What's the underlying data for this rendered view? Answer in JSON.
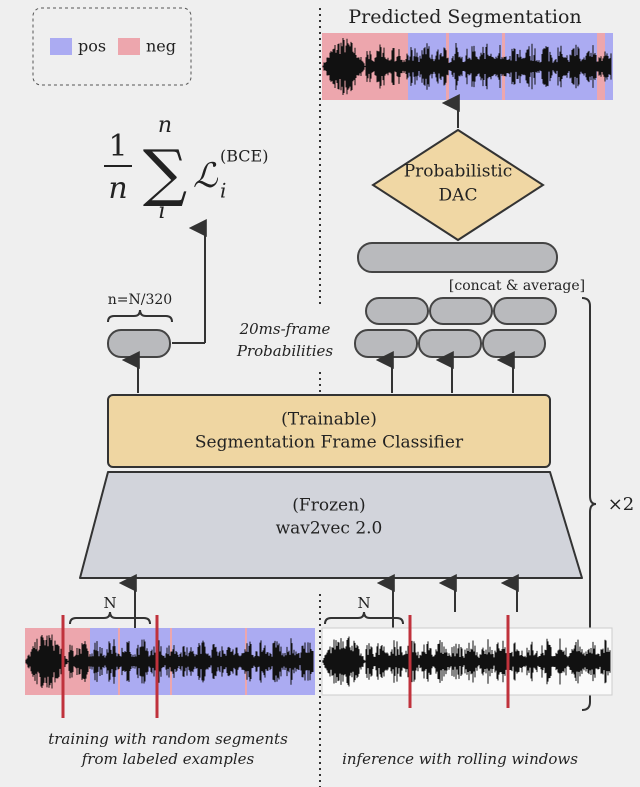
{
  "legend": {
    "items": [
      {
        "label": "pos",
        "color": "#ababf2"
      },
      {
        "label": "neg",
        "color": "#eda6ad"
      }
    ]
  },
  "loss": {
    "numerator": "1",
    "denominator": "n",
    "sum_upper": "n",
    "sum_lower": "i",
    "term": "ℒ",
    "term_sub": "i",
    "term_sup": "(BCE)"
  },
  "output_size": "n=N/320",
  "probabilities_note": [
    "20ms-frame",
    "Probabilities"
  ],
  "classifier": [
    "(Trainable)",
    "Segmentation Frame Classifier"
  ],
  "encoder": [
    "(Frozen)",
    "wav2vec 2.0"
  ],
  "prediction_title": "Predicted Segmentation",
  "dac": [
    "Probabilistic",
    "DAC"
  ],
  "concat_note": "[concat & average]",
  "repeat": "×2",
  "window_labels": [
    "N",
    "N"
  ],
  "captions": {
    "training": [
      "training with random segments",
      "from labeled examples"
    ],
    "inference": "inference with rolling windows"
  }
}
